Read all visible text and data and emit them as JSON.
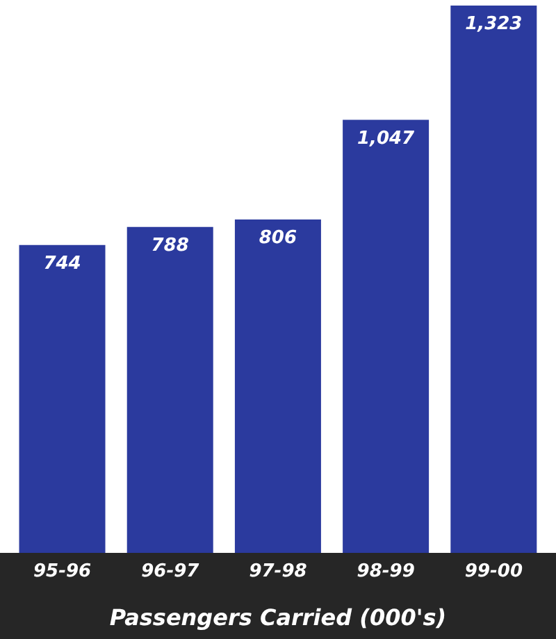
{
  "chart_data": {
    "type": "bar",
    "xlabel": "Passengers Carried (000's)",
    "categories": [
      "95-96",
      "96-97",
      "97-98",
      "98-99",
      "99-00"
    ],
    "values": [
      744,
      788,
      806,
      1047,
      1323
    ],
    "value_labels": [
      "744",
      "788",
      "806",
      "1,047",
      "1,323"
    ],
    "color": "#2b3a9e"
  }
}
